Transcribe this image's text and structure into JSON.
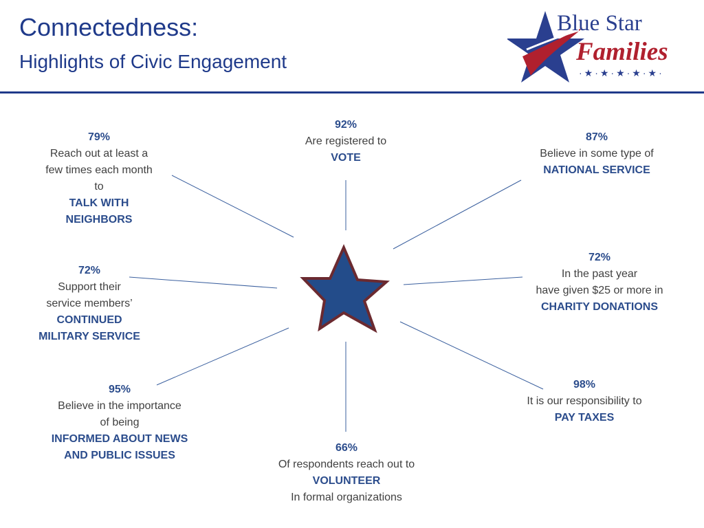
{
  "title": "Connectedness:",
  "subtitle": "Highlights of Civic Engagement",
  "logo": {
    "line1": "Blue Star",
    "line2": "Families",
    "stars": "·★·★·★·★·★·"
  },
  "colors": {
    "heading": "#1f3a8a",
    "highlight": "#2b4c8c",
    "body_text": "#404040",
    "star_fill": "#234c8a",
    "star_outline": "#6b2a30",
    "connector": "#3a5f9e",
    "logo_red": "#b0202e"
  },
  "center_icon": "star-icon",
  "stats": {
    "talk_with_neighbors": {
      "pct": "79%",
      "text": "Reach out at least a\nfew times each month\nto",
      "highlight": "TALK WITH\nNEIGHBORS"
    },
    "vote": {
      "pct": "92%",
      "text": "Are registered to",
      "highlight": "VOTE"
    },
    "national_service": {
      "pct": "87%",
      "text": "Believe in some type of",
      "highlight": "NATIONAL SERVICE"
    },
    "continued_military_service": {
      "pct": "72%",
      "text": "Support their\nservice members’",
      "highlight": "CONTINUED\nMILITARY SERVICE"
    },
    "charity_donations": {
      "pct": "72%",
      "text": "In the past year\nhave given $25  or more in",
      "highlight": "CHARITY DONATIONS"
    },
    "informed_news": {
      "pct": "95%",
      "text": "Believe in the importance\nof being",
      "highlight": "INFORMED ABOUT NEWS\nAND PUBLIC ISSUES"
    },
    "pay_taxes": {
      "pct": "98%",
      "text": "It is our responsibility to",
      "highlight": "PAY TAXES"
    },
    "volunteer": {
      "pct": "66%",
      "text": "Of respondents reach out to",
      "highlight": "VOLUNTEER",
      "footer": "In formal organizations"
    }
  }
}
